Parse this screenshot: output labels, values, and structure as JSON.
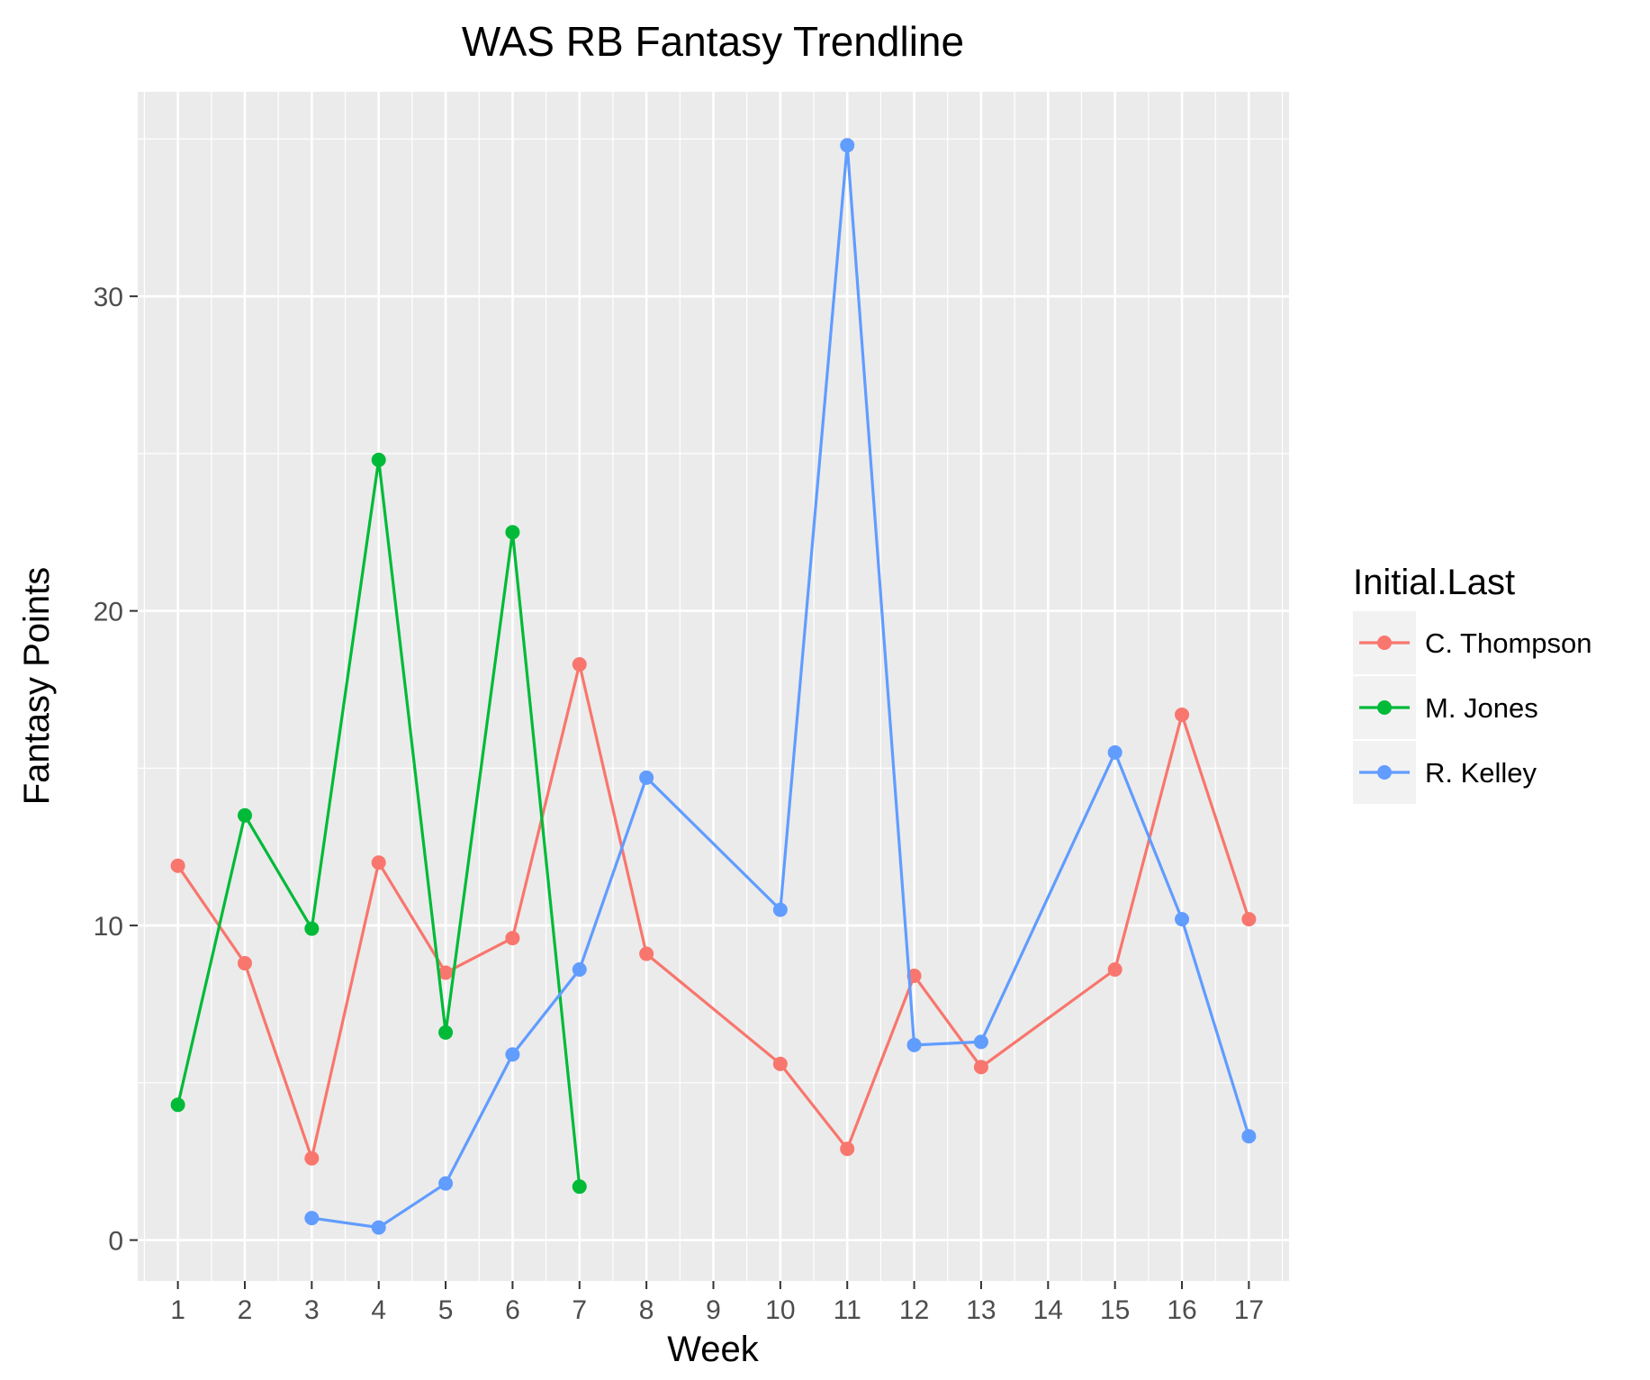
{
  "chart_data": {
    "type": "line",
    "title": "WAS RB Fantasy Trendline",
    "xlabel": "Week",
    "ylabel": "Fantasy Points",
    "categories": [
      "1",
      "2",
      "3",
      "4",
      "5",
      "6",
      "7",
      "8",
      "9",
      "10",
      "11",
      "12",
      "13",
      "14",
      "15",
      "16",
      "17"
    ],
    "yticks": [
      "0",
      "10",
      "20",
      "30"
    ],
    "ylim": [
      -1.3,
      36.5
    ],
    "grid": true,
    "legend": {
      "title": "Initial.Last",
      "position": "right"
    },
    "series": [
      {
        "name": "C. Thompson",
        "color": "#F8766D",
        "points": [
          [
            "1",
            11.9
          ],
          [
            "2",
            8.8
          ],
          [
            "3",
            2.6
          ],
          [
            "4",
            12.0
          ],
          [
            "5",
            8.5
          ],
          [
            "6",
            9.6
          ],
          [
            "7",
            18.3
          ],
          [
            "8",
            9.1
          ],
          [
            "10",
            5.6
          ],
          [
            "11",
            2.9
          ],
          [
            "12",
            8.4
          ],
          [
            "13",
            5.5
          ],
          [
            "15",
            8.6
          ],
          [
            "16",
            16.7
          ],
          [
            "17",
            10.2
          ]
        ]
      },
      {
        "name": "M. Jones",
        "color": "#00BA38",
        "points": [
          [
            "1",
            4.3
          ],
          [
            "2",
            13.5
          ],
          [
            "3",
            9.9
          ],
          [
            "4",
            24.8
          ],
          [
            "5",
            6.6
          ],
          [
            "6",
            22.5
          ],
          [
            "7",
            1.7
          ]
        ]
      },
      {
        "name": "R. Kelley",
        "color": "#619CFF",
        "points": [
          [
            "3",
            0.7
          ],
          [
            "4",
            0.4
          ],
          [
            "5",
            1.8
          ],
          [
            "6",
            5.9
          ],
          [
            "7",
            8.6
          ],
          [
            "8",
            14.7
          ],
          [
            "10",
            10.5
          ],
          [
            "11",
            34.8
          ],
          [
            "12",
            6.2
          ],
          [
            "13",
            6.3
          ],
          [
            "15",
            15.5
          ],
          [
            "16",
            10.2
          ],
          [
            "17",
            3.3
          ]
        ]
      }
    ]
  }
}
